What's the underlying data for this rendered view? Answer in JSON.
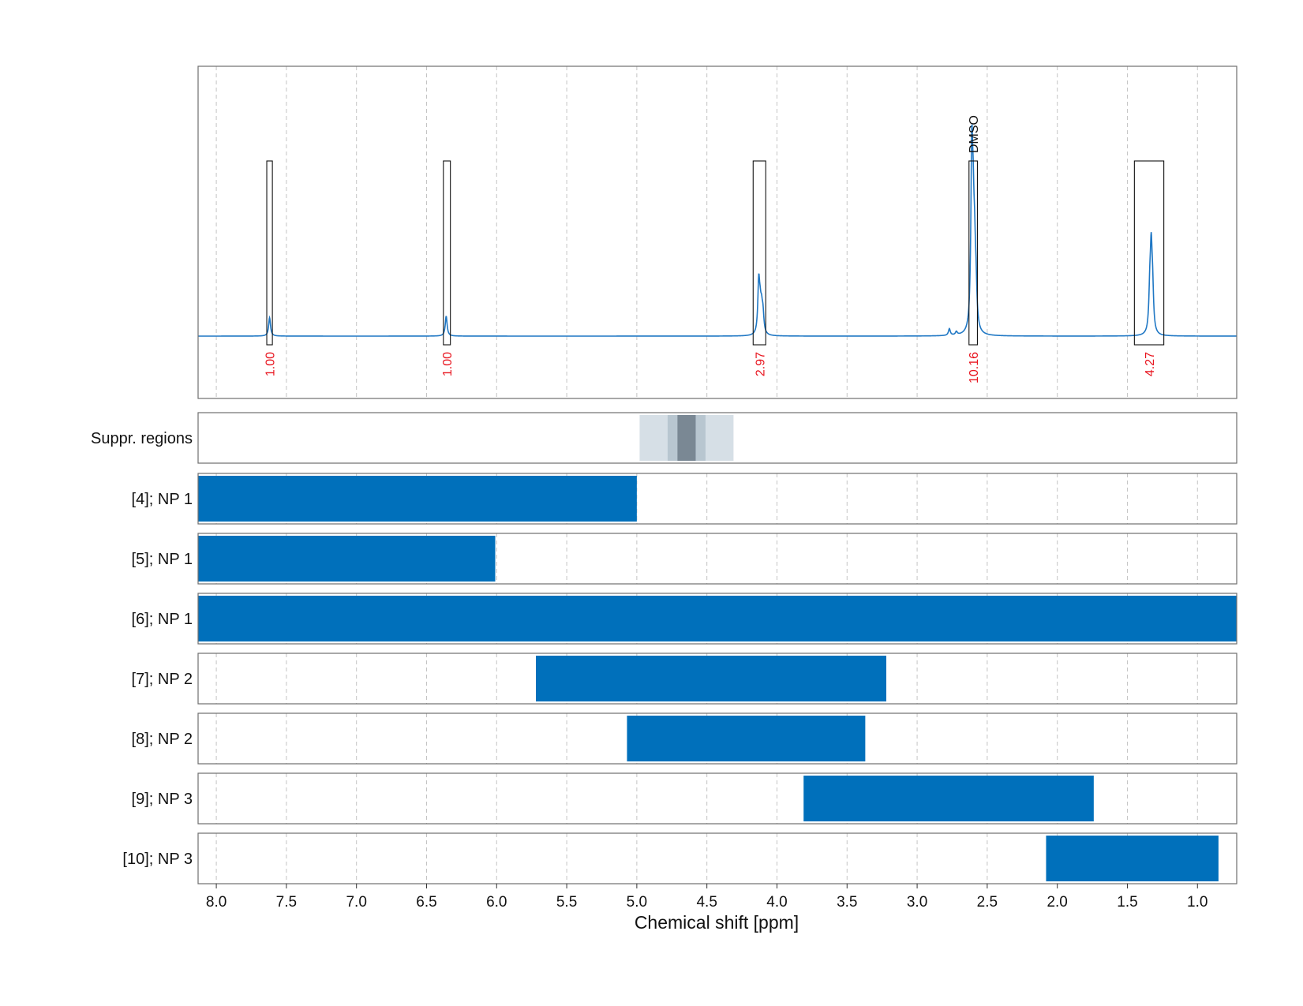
{
  "chart_data": {
    "type": "line",
    "xlabel": "Chemical shift [ppm]",
    "x_reversed": true,
    "xlim": [
      8.13,
      0.72
    ],
    "x_ticks": [
      8.0,
      7.5,
      7.0,
      6.5,
      6.0,
      5.5,
      5.0,
      4.5,
      4.0,
      3.5,
      3.0,
      2.5,
      2.0,
      1.5,
      1.0
    ],
    "x_tick_labels": [
      "8.0",
      "7.5",
      "7.0",
      "6.5",
      "6.0",
      "5.5",
      "5.0",
      "4.5",
      "4.0",
      "3.5",
      "3.0",
      "2.5",
      "2.0",
      "1.5",
      "1.0"
    ],
    "spectrum": {
      "color": "#1f77c4",
      "peaks": [
        {
          "x": 7.62,
          "y": 0.11
        },
        {
          "x": 6.36,
          "y": 0.12
        },
        {
          "x": 4.13,
          "y": 0.3
        },
        {
          "x": 4.12,
          "y": 0.12
        },
        {
          "x": 4.11,
          "y": 0.12
        },
        {
          "x": 4.1,
          "y": 0.11
        },
        {
          "x": 2.77,
          "y": 0.04
        },
        {
          "x": 2.72,
          "y": 0.02
        },
        {
          "x": 2.61,
          "y": 1.0
        },
        {
          "x": 2.6,
          "y": 0.5
        },
        {
          "x": 2.59,
          "y": 0.35
        },
        {
          "x": 2.58,
          "y": 0.2
        },
        {
          "x": 1.34,
          "y": 0.22
        },
        {
          "x": 1.33,
          "y": 0.45
        },
        {
          "x": 1.32,
          "y": 0.22
        }
      ]
    },
    "integrals": [
      {
        "x_start": 7.64,
        "x_end": 7.6,
        "label": "1.00"
      },
      {
        "x_start": 6.38,
        "x_end": 6.33,
        "label": "1.00"
      },
      {
        "x_start": 4.17,
        "x_end": 4.08,
        "label": "2.97"
      },
      {
        "x_start": 2.63,
        "x_end": 2.57,
        "label": "10.16"
      },
      {
        "x_start": 1.45,
        "x_end": 1.24,
        "label": "4.27"
      }
    ],
    "annotations": [
      {
        "x": 2.6,
        "text": "DMSO"
      }
    ],
    "suppression_label": "Suppr. regions",
    "suppression_bands": [
      {
        "x_start": 4.98,
        "x_end": 4.31,
        "color": "#d6dfe6"
      },
      {
        "x_start": 4.78,
        "x_end": 4.51,
        "color": "#b8c6d0"
      },
      {
        "x_start": 4.71,
        "x_end": 4.58,
        "color": "#7a8894"
      }
    ],
    "bar_color": "#0070bb",
    "range_bars": [
      {
        "label": "[4]; NP 1",
        "x_start": 8.13,
        "x_end": 5.0
      },
      {
        "label": "[5]; NP 1",
        "x_start": 8.13,
        "x_end": 6.01
      },
      {
        "label": "[6]; NP 1",
        "x_start": 8.13,
        "x_end": 0.72
      },
      {
        "label": "[7]; NP 2",
        "x_start": 5.72,
        "x_end": 3.22
      },
      {
        "label": "[8]; NP 2",
        "x_start": 5.07,
        "x_end": 3.37
      },
      {
        "label": "[9]; NP 3",
        "x_start": 3.81,
        "x_end": 1.74
      },
      {
        "label": "[10]; NP 3",
        "x_start": 2.08,
        "x_end": 0.85
      }
    ]
  }
}
